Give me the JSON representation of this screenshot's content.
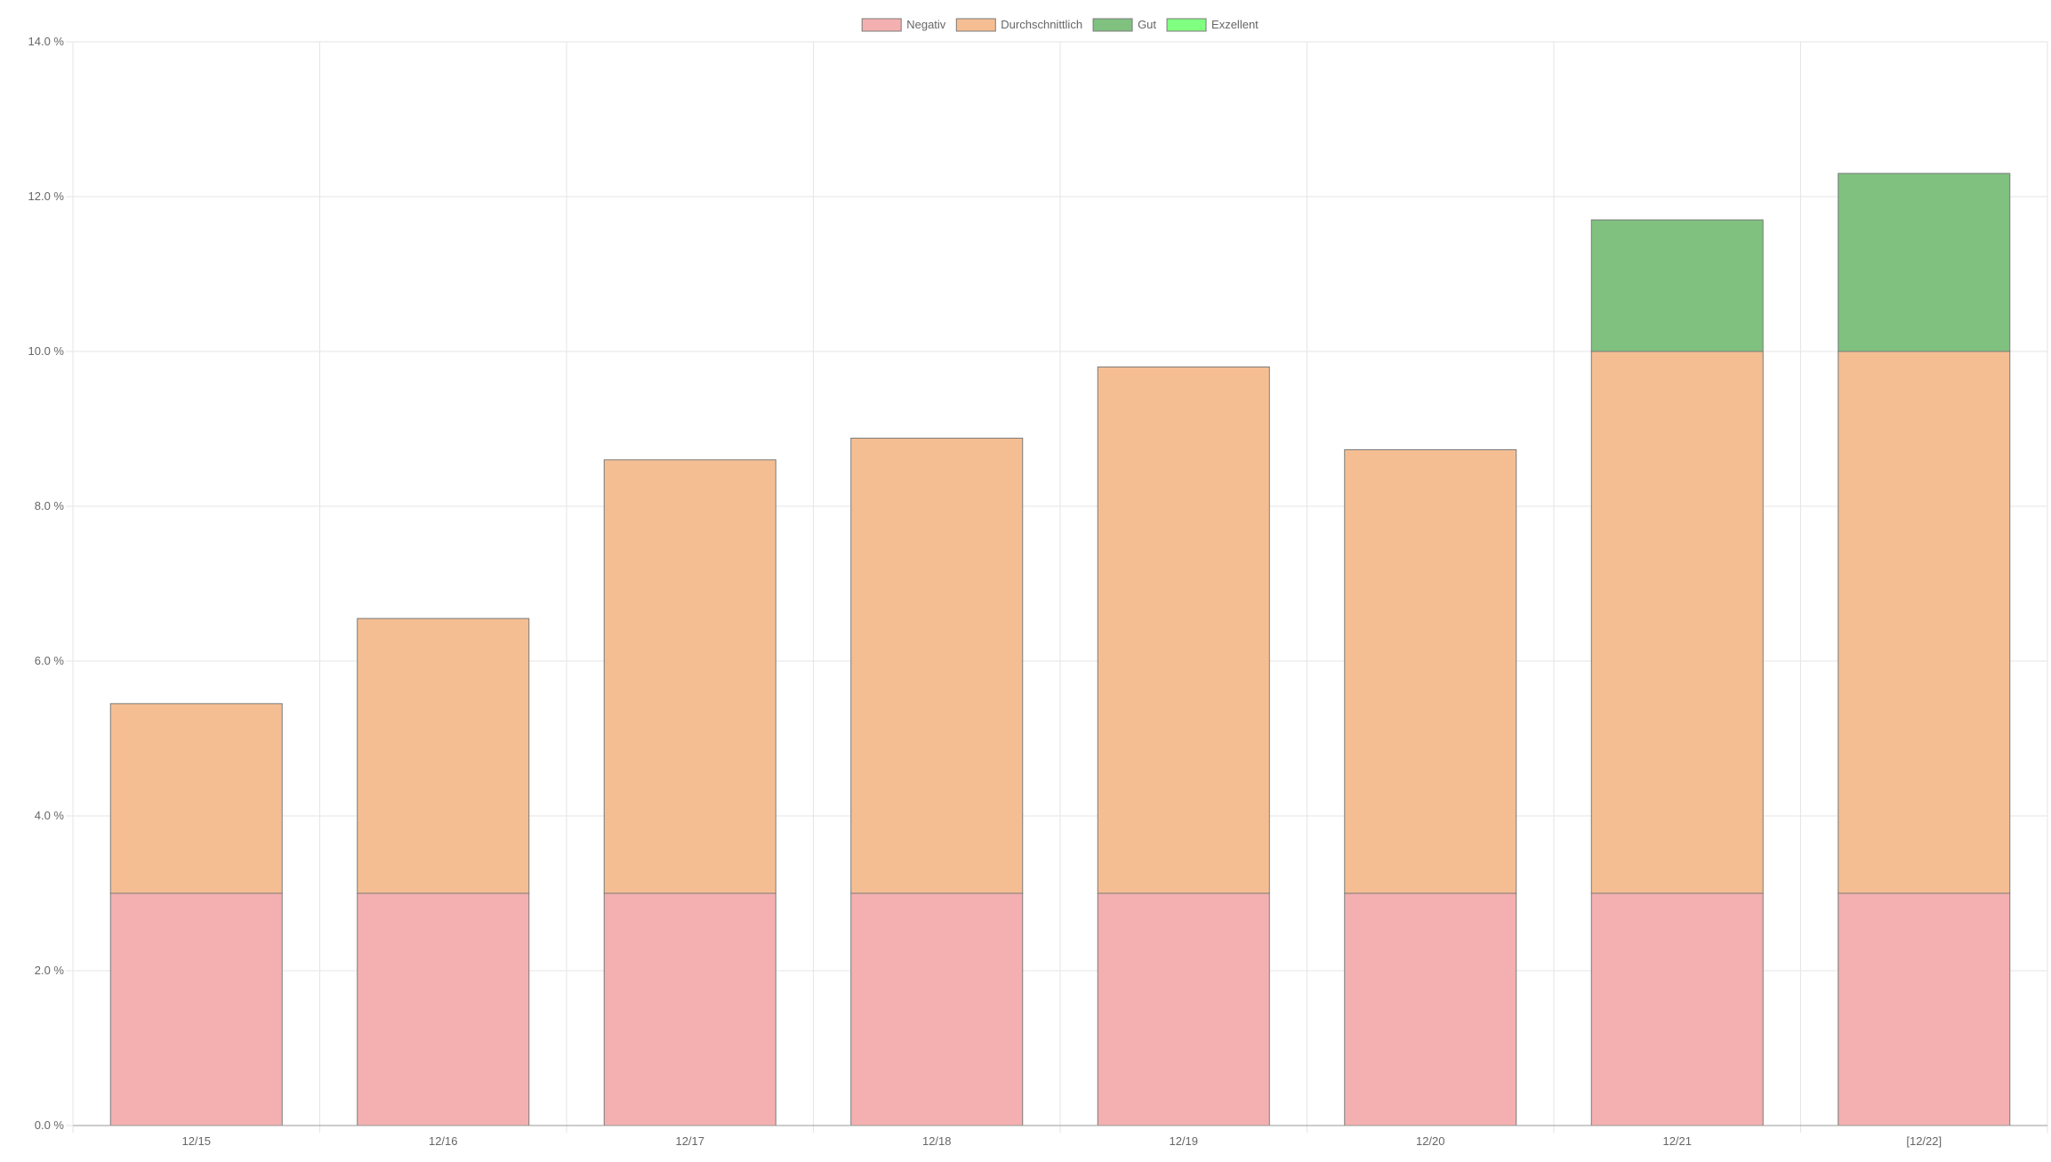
{
  "chart_data": {
    "type": "bar",
    "stacked": true,
    "categories": [
      "12/15",
      "12/16",
      "12/17",
      "12/18",
      "12/19",
      "12/20",
      "12/21",
      "[12/22]"
    ],
    "series": [
      {
        "name": "Negativ",
        "color": "#f4b0b0",
        "values": [
          3.0,
          3.0,
          3.0,
          3.0,
          3.0,
          3.0,
          3.0,
          3.0
        ]
      },
      {
        "name": "Durchschnittlich",
        "color": "#f5be92",
        "values": [
          2.45,
          3.55,
          5.6,
          5.88,
          6.8,
          5.73,
          7.0,
          7.0
        ]
      },
      {
        "name": "Gut",
        "color": "#80c180",
        "values": [
          0,
          0,
          0,
          0,
          0,
          0,
          1.7,
          2.3
        ]
      },
      {
        "name": "Exzellent",
        "color": "#80ff80",
        "values": [
          0,
          0,
          0,
          0,
          0,
          0,
          0,
          0
        ]
      }
    ],
    "ylim": [
      0,
      14
    ],
    "y_ticks": [
      "0.0 %",
      "2.0 %",
      "4.0 %",
      "6.0 %",
      "8.0 %",
      "10.0 %",
      "12.0 %",
      "14.0 %"
    ],
    "xlabel": "",
    "ylabel": "",
    "grid": true,
    "legend_position": "top-center",
    "bar_border_color": "#7a7a7a",
    "grid_color": "#e5e5e5",
    "axis_color": "#999999"
  }
}
